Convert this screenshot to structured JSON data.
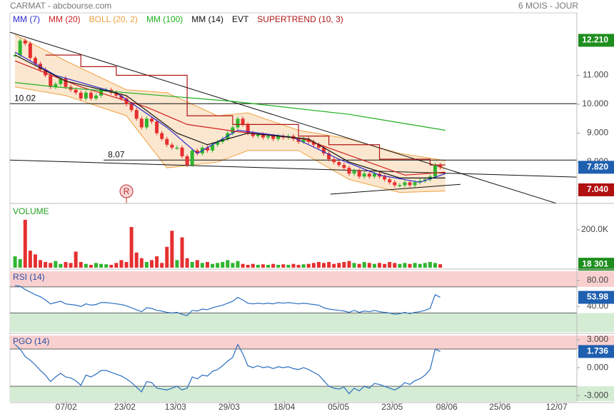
{
  "header": {
    "title": "CARMAT - abcbourse.com",
    "period": "6 MOIS - JOUR"
  },
  "chart_data": [
    {
      "type": "candlestick",
      "xlim": [
        -1,
        111
      ],
      "xticks": [
        {
          "value": 10.1,
          "label": "07/02"
        },
        {
          "value": 21.7,
          "label": "23/02"
        },
        {
          "value": 31.7,
          "label": "13/03"
        },
        {
          "value": 42.3,
          "label": "29/03"
        },
        {
          "value": 53.2,
          "label": "18/04"
        },
        {
          "value": 63.9,
          "label": "05/05"
        },
        {
          "value": 74.5,
          "label": "23/05"
        },
        {
          "value": 85.3,
          "label": "08/06"
        },
        {
          "value": 95.8,
          "label": "25/06"
        },
        {
          "value": 107,
          "label": "12/07"
        }
      ],
      "ylim": [
        6.57,
        13.16
      ],
      "yticks": [
        {
          "value": 8,
          "label": "8.000"
        },
        {
          "value": 9,
          "label": "9.000"
        },
        {
          "value": 10,
          "label": "10.000"
        },
        {
          "value": 11,
          "label": "11.000"
        }
      ],
      "up_color": "#2fb52f",
      "down_color": "#e53030",
      "closes": [
        11.7,
        12.2,
        12.1,
        11.6,
        11.4,
        11.2,
        11.0,
        10.6,
        10.7,
        10.9,
        10.6,
        10.5,
        10.4,
        10.2,
        10.4,
        10.2,
        10.3,
        10.5,
        10.5,
        10.4,
        10.3,
        10.2,
        10.0,
        9.8,
        9.5,
        9.2,
        9.5,
        9.4,
        9.0,
        8.8,
        8.6,
        8.5,
        8.5,
        8.2,
        7.9,
        8.4,
        8.3,
        8.5,
        8.4,
        8.6,
        8.7,
        8.8,
        9.0,
        9.2,
        9.5,
        9.3,
        9.0,
        8.9,
        8.95,
        8.85,
        8.9,
        8.8,
        8.9,
        8.85,
        8.9,
        8.8,
        8.7,
        8.8,
        8.7,
        8.6,
        8.5,
        8.3,
        8.1,
        8.0,
        7.9,
        7.8,
        7.6,
        7.7,
        7.5,
        7.6,
        7.5,
        7.6,
        7.5,
        7.4,
        7.3,
        7.2,
        7.2,
        7.3,
        7.2,
        7.3,
        7.35,
        7.4,
        7.5,
        7.9,
        7.82
      ],
      "series": [
        {
          "name": "MM (7)",
          "kind": "line",
          "color": "#2a2ad0",
          "x": [
            0,
            8,
            20,
            30,
            36,
            44,
            55,
            64,
            72,
            80,
            85
          ],
          "values": [
            11.8,
            11.0,
            10.4,
            9.2,
            8.3,
            9.1,
            8.85,
            8.1,
            7.55,
            7.3,
            7.6
          ]
        },
        {
          "name": "MM (20)",
          "kind": "line",
          "color": "#d02020",
          "x": [
            0,
            13,
            26,
            34,
            44,
            57,
            65,
            77,
            85
          ],
          "values": [
            11.5,
            10.6,
            9.9,
            9.3,
            9.05,
            8.8,
            8.3,
            7.55,
            7.65
          ]
        },
        {
          "name": "BOLL (20, 2)",
          "kind": "band",
          "color": "#f0a040",
          "x": [
            0,
            10,
            22,
            30,
            40,
            46,
            56,
            66,
            76,
            85
          ],
          "upper": [
            12.4,
            11.5,
            10.5,
            10.4,
            9.6,
            9.7,
            9.1,
            8.8,
            8.3,
            8.05
          ],
          "lower": [
            10.6,
            10.3,
            9.6,
            7.8,
            8.0,
            8.4,
            8.4,
            7.4,
            6.95,
            7.0
          ]
        },
        {
          "name": "MM (100)",
          "kind": "line",
          "color": "#20b020",
          "x": [
            0,
            8,
            43,
            66,
            85
          ],
          "values": [
            10.75,
            10.6,
            10.1,
            9.65,
            9.1
          ]
        },
        {
          "name": "MM (14)",
          "kind": "line",
          "color": "#111111",
          "x": [
            0,
            10,
            22,
            32,
            38,
            46,
            58,
            66,
            76,
            85
          ],
          "values": [
            11.7,
            10.8,
            10.3,
            9.0,
            8.6,
            9.0,
            8.8,
            8.0,
            7.45,
            7.45
          ]
        },
        {
          "name": "EVT",
          "kind": "events",
          "color": "#111111",
          "events": [
            {
              "x": 22,
              "label": "R"
            }
          ]
        },
        {
          "name": "SUPERTREND (10, 3)",
          "kind": "line",
          "color": "#b01818",
          "x": [
            6,
            13,
            13,
            20,
            20,
            34,
            34,
            43,
            43,
            56,
            56,
            62,
            62,
            72,
            72,
            82,
            82,
            85
          ],
          "values": [
            11.7,
            11.7,
            11.3,
            11.3,
            11.0,
            11.0,
            9.6,
            9.6,
            9.3,
            9.3,
            8.9,
            8.9,
            8.6,
            8.6,
            8.1,
            8.1,
            7.9,
            7.9
          ]
        }
      ],
      "trendlines": [
        {
          "x": [
            -1,
            107
          ],
          "values": [
            12.49,
            6.57
          ]
        },
        {
          "x": [
            -1,
            111
          ],
          "values": [
            8.07,
            7.48
          ]
        },
        {
          "x": [
            62.3,
            88
          ],
          "values": [
            6.89,
            7.23
          ]
        }
      ],
      "levels": [
        {
          "x": [
            -1,
            111
          ],
          "value": 10.02,
          "label": "10.02"
        },
        {
          "x": [
            17.5,
            111
          ],
          "value": 8.07,
          "label": "8.07"
        }
      ],
      "markers": [
        {
          "value": 12.21,
          "label": "12.210",
          "color": "#1e8e1e"
        },
        {
          "value": 7.82,
          "label": "7.820",
          "color": "#1f5fb0"
        },
        {
          "value": 7.04,
          "label": "7.040",
          "color": "#b01010"
        }
      ]
    },
    {
      "type": "volume",
      "title": "VOLUME",
      "title_color": "#20a020",
      "ylim": [
        0,
        328000
      ],
      "yticks": [
        {
          "value": 200000,
          "label": "200.0K"
        }
      ],
      "values": [
        60000,
        45000,
        253000,
        90000,
        70000,
        40000,
        30000,
        25000,
        35000,
        20000,
        30000,
        25000,
        85000,
        30000,
        20000,
        15000,
        25000,
        20000,
        18000,
        15000,
        25000,
        40000,
        30000,
        215000,
        80000,
        50000,
        30000,
        40000,
        60000,
        25000,
        110000,
        195000,
        40000,
        160000,
        50000,
        30000,
        40000,
        25000,
        30000,
        20000,
        25000,
        30000,
        40000,
        25000,
        35000,
        20000,
        15000,
        20000,
        15000,
        18000,
        15000,
        20000,
        15000,
        18000,
        15000,
        20000,
        15000,
        18000,
        20000,
        25000,
        30000,
        25000,
        30000,
        20000,
        25000,
        30000,
        35000,
        25000,
        20000,
        30000,
        25000,
        20000,
        25000,
        20000,
        30000,
        25000,
        20000,
        25000,
        20000,
        25000,
        20000,
        25000,
        30000,
        25000,
        18301
      ],
      "last_label": "18 301",
      "last_color": "#1e8e1e"
    },
    {
      "type": "line",
      "title": "RSI (14)",
      "title_color": "#2a4fa0",
      "color": "#2a6fc0",
      "ylim": [
        1,
        94
      ],
      "yticks": [
        {
          "value": 40,
          "label": "40.00"
        },
        {
          "value": 80,
          "label": "80.00"
        }
      ],
      "zones": [
        {
          "from": 70,
          "to": 94,
          "color": "#f9d0d0"
        },
        {
          "from": 1,
          "to": 30,
          "color": "#d4ecd4"
        }
      ],
      "values": [
        72,
        71,
        66,
        62,
        58,
        55,
        50,
        44,
        46,
        48,
        44,
        43,
        42,
        40,
        44,
        42,
        43,
        46,
        46,
        45,
        44,
        43,
        41,
        38,
        35,
        32,
        38,
        37,
        34,
        33,
        31,
        30,
        31,
        28,
        26,
        34,
        33,
        36,
        35,
        38,
        40,
        42,
        45,
        48,
        54,
        50,
        45,
        44,
        45,
        44,
        45,
        44,
        46,
        45,
        46,
        45,
        44,
        45,
        44,
        43,
        42,
        38,
        36,
        35,
        34,
        33,
        31,
        34,
        31,
        33,
        32,
        34,
        32,
        31,
        30,
        28,
        29,
        31,
        29,
        31,
        32,
        34,
        37,
        58,
        53.98
      ],
      "last_color": "#1f5fb0"
    },
    {
      "type": "line",
      "title": "PGO (14)",
      "title_color": "#2a4fa0",
      "color": "#2a6fc0",
      "ylim": [
        -3.6,
        3.46
      ],
      "yticks": [
        {
          "value": -3,
          "label": "-3.000"
        },
        {
          "value": 0,
          "label": "0.000"
        },
        {
          "value": 3,
          "label": "3.000"
        }
      ],
      "zones": [
        {
          "from": 2,
          "to": 3.46,
          "color": "#f9d0d0"
        },
        {
          "from": -3.6,
          "to": -2,
          "color": "#d4ecd4"
        }
      ],
      "values": [
        2.5,
        2.0,
        1.2,
        0.8,
        0.3,
        -0.3,
        -0.8,
        -1.5,
        -1.0,
        -0.6,
        -1.0,
        -1.1,
        -1.4,
        -1.9,
        -0.8,
        -1.0,
        -0.7,
        -0.3,
        -0.3,
        -0.5,
        -0.7,
        -0.9,
        -1.2,
        -1.6,
        -2.1,
        -2.6,
        -1.5,
        -1.6,
        -2.2,
        -2.3,
        -2.4,
        -2.2,
        -2.0,
        -2.4,
        -2.2,
        -1.0,
        -1.2,
        -0.8,
        -0.9,
        -0.4,
        -0.2,
        0.2,
        0.7,
        1.1,
        2.5,
        1.5,
        0.2,
        0.0,
        0.2,
        0.0,
        0.1,
        -0.1,
        0.1,
        0.0,
        0.1,
        -0.1,
        -0.2,
        0.0,
        -0.2,
        -0.5,
        -0.8,
        -1.4,
        -2.0,
        -2.2,
        -2.3,
        -2.1,
        -2.8,
        -2.2,
        -2.5,
        -2.0,
        -2.2,
        -1.7,
        -1.8,
        -2.0,
        -2.2,
        -2.4,
        -2.1,
        -1.6,
        -1.8,
        -1.4,
        -1.2,
        -0.8,
        -0.2,
        2.0,
        1.736
      ],
      "last_color": "#1f5fb0"
    }
  ]
}
